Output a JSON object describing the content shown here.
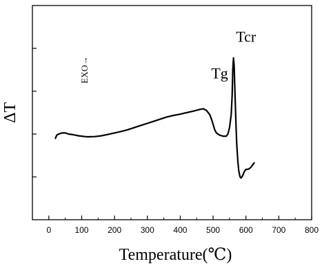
{
  "chart_data": {
    "type": "line",
    "xlabel": "Temperature(℃)",
    "ylabel": "ΔT",
    "xlim": [
      -50,
      800
    ],
    "x_ticks": [
      0,
      100,
      200,
      300,
      400,
      500,
      600,
      700,
      800
    ],
    "y_ticks_labeled": false,
    "grid": false,
    "annotations": [
      {
        "text": "EXO→",
        "x": 118,
        "y": 7.0,
        "orientation": "vertical"
      },
      {
        "text": "Tg",
        "x": 520,
        "y": 6.6
      },
      {
        "text": "Tcr",
        "x": 600,
        "y": 8.3
      }
    ],
    "series": [
      {
        "x": [
          20,
          24,
          30,
          40,
          50,
          60,
          70,
          80,
          90,
          100,
          110,
          120,
          140,
          160,
          180,
          200,
          220,
          240,
          260,
          280,
          300,
          320,
          340,
          360,
          380,
          400,
          420,
          440,
          460,
          470,
          480,
          490,
          495,
          500,
          505,
          510,
          520,
          530,
          540,
          545,
          550,
          555,
          558,
          560,
          562,
          564,
          566,
          568,
          570,
          572,
          575,
          578,
          582,
          585,
          590,
          595,
          600,
          605,
          610,
          615,
          620,
          625
        ],
        "y": [
          3.8,
          3.95,
          4.0,
          4.05,
          4.05,
          4.0,
          3.98,
          3.95,
          3.92,
          3.9,
          3.88,
          3.87,
          3.88,
          3.92,
          3.98,
          4.05,
          4.12,
          4.2,
          4.3,
          4.4,
          4.5,
          4.6,
          4.7,
          4.8,
          4.87,
          4.93,
          5.0,
          5.07,
          5.15,
          5.18,
          5.1,
          4.9,
          4.7,
          4.45,
          4.2,
          4.05,
          3.95,
          3.9,
          3.9,
          4.0,
          4.3,
          4.9,
          5.8,
          7.0,
          7.55,
          7.2,
          6.2,
          5.2,
          4.3,
          3.5,
          2.8,
          2.3,
          2.0,
          1.95,
          2.05,
          2.25,
          2.35,
          2.35,
          2.38,
          2.45,
          2.55,
          2.65
        ]
      }
    ]
  }
}
